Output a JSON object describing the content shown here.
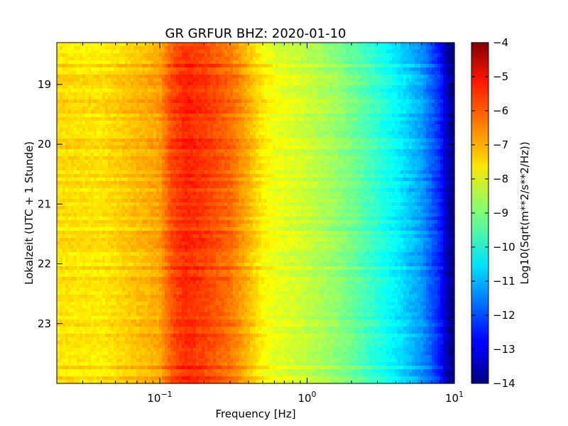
{
  "chart_data": {
    "type": "heatmap",
    "title": "GR GRFUR BHZ: 2020-01-10",
    "xlabel": "Frequency [Hz]",
    "ylabel": "Lokalzeit (UTC + 1 Stunde)",
    "x_scale": "log",
    "xlim": [
      0.02,
      10
    ],
    "ylim": [
      24.0,
      18.3
    ],
    "x_ticks": [
      {
        "value": 0.1,
        "base": "10",
        "exp": "−1"
      },
      {
        "value": 1,
        "base": "10",
        "exp": "0"
      },
      {
        "value": 10,
        "base": "10",
        "exp": "1"
      }
    ],
    "y_ticks": [
      19,
      20,
      21,
      22,
      23
    ],
    "colorbar": {
      "label": "Log10(Sqrt(m**2/s**2/Hz))",
      "range": [
        -14,
        -4
      ],
      "ticks": [
        "−4",
        "−5",
        "−6",
        "−7",
        "−8",
        "−9",
        "−10",
        "−11",
        "−12",
        "−13",
        "−14"
      ],
      "colormap": "jet"
    },
    "profile_frequency_hz": [
      0.02,
      0.04,
      0.06,
      0.08,
      0.1,
      0.12,
      0.15,
      0.2,
      0.3,
      0.4,
      0.5,
      0.6,
      0.8,
      1.0,
      1.5,
      2.0,
      3.0,
      4.0,
      6.0,
      8.0,
      9.0,
      10.0
    ],
    "profile_value": [
      -7.4,
      -7.5,
      -7.2,
      -7.0,
      -6.8,
      -6.0,
      -5.6,
      -5.8,
      -6.3,
      -7.0,
      -7.6,
      -7.9,
      -8.1,
      -8.3,
      -8.7,
      -9.1,
      -9.8,
      -10.3,
      -11.2,
      -12.4,
      -13.5,
      -14.0
    ]
  }
}
